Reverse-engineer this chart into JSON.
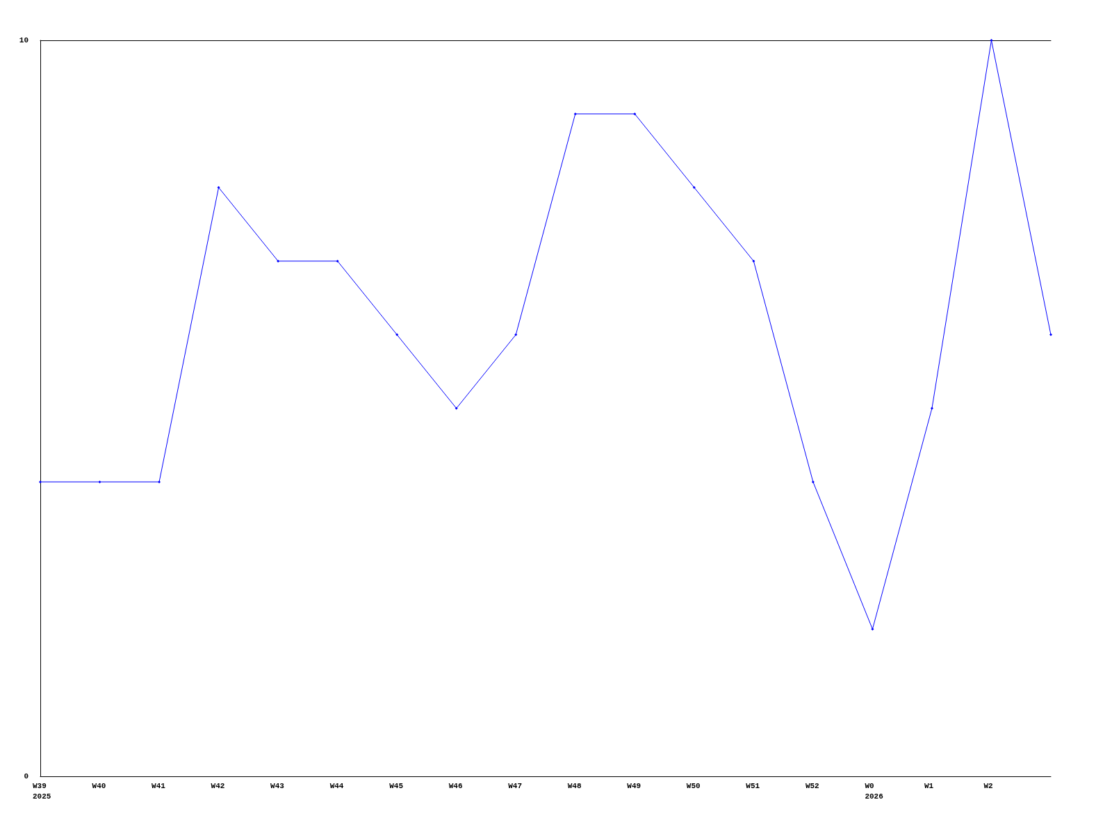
{
  "chart_data": {
    "type": "line",
    "categories": [
      "W39\n2025",
      "W40",
      "W41",
      "W42",
      "W43",
      "W44",
      "W45",
      "W46",
      "W47",
      "W48",
      "W49",
      "W50",
      "W51",
      "W52",
      "W0\n2026",
      "W1",
      "W2",
      null
    ],
    "series": [
      {
        "color": "#0000ff",
        "values": [
          4,
          4,
          4,
          8,
          7,
          7,
          6,
          5,
          6,
          9,
          9,
          8,
          7,
          4,
          2,
          5,
          10,
          6
        ]
      }
    ],
    "ylim": [
      0,
      10
    ],
    "yticks": [
      0,
      10
    ],
    "grid": false,
    "marker": "diamond",
    "line_style": "solid"
  }
}
